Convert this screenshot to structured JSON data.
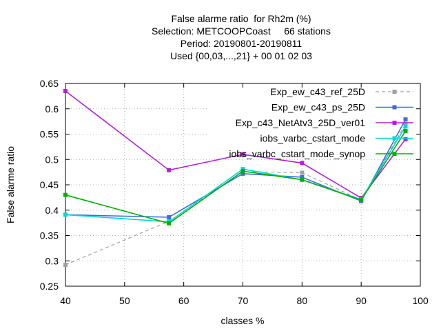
{
  "header": {
    "title_lines": [
      "False alarme ratio  for Rh2m (%)",
      "Selection: METCOOPCoast     66 stations",
      "Period: 20190801-20190811",
      "Used {00,03,...,21} + 00 01 02 03"
    ]
  },
  "chart_data": {
    "type": "line",
    "xlabel": "classes %",
    "ylabel": "False alarme ratio",
    "xlim": [
      40,
      100
    ],
    "ylim": [
      0.25,
      0.65
    ],
    "xticks": [
      40,
      50,
      60,
      70,
      80,
      90,
      100
    ],
    "xtick_labels": [
      "40",
      "50",
      "60",
      "70",
      "80",
      "90",
      "100"
    ],
    "yticks": [
      0.25,
      0.3,
      0.35,
      0.4,
      0.45,
      0.5,
      0.55,
      0.6,
      0.65
    ],
    "ytick_labels": [
      "0.25",
      "0.3",
      "0.35",
      "0.4",
      "0.45",
      "0.5",
      "0.55",
      "0.6",
      "0.65"
    ],
    "grid": true,
    "legend_position": "top-right",
    "series": [
      {
        "name": "Exp_ew_c43_ref_25D",
        "color": "#a0a0a0",
        "dashed": true,
        "x": [
          40,
          57.5,
          70,
          80,
          90,
          97.5
        ],
        "y": [
          0.292,
          0.378,
          0.476,
          0.474,
          0.42,
          0.57
        ]
      },
      {
        "name": "Exp_ew_c43_ps_25D",
        "color": "#4169e1",
        "dashed": false,
        "x": [
          40,
          57.5,
          70,
          80,
          90,
          97.5
        ],
        "y": [
          0.391,
          0.386,
          0.472,
          0.465,
          0.418,
          0.579
        ]
      },
      {
        "name": "Exp_c43_NetAtv3_25D_ver01",
        "color": "#b21fde",
        "dashed": false,
        "x": [
          40,
          57.5,
          70,
          80,
          90,
          97.5
        ],
        "y": [
          0.635,
          0.479,
          0.51,
          0.493,
          0.424,
          0.54
        ]
      },
      {
        "name": "iobs_varbc_cstart_mode",
        "color": "#00d8d8",
        "dashed": false,
        "x": [
          40,
          57.5,
          70,
          80,
          90,
          97.5
        ],
        "y": [
          0.391,
          0.377,
          0.481,
          0.46,
          0.421,
          0.565
        ]
      },
      {
        "name": "iobs_varbc_cstart_mode_synop",
        "color": "#00b000",
        "dashed": false,
        "x": [
          40,
          57.5,
          70,
          80,
          90,
          97.5
        ],
        "y": [
          0.43,
          0.374,
          0.477,
          0.46,
          0.42,
          0.556
        ]
      }
    ]
  }
}
